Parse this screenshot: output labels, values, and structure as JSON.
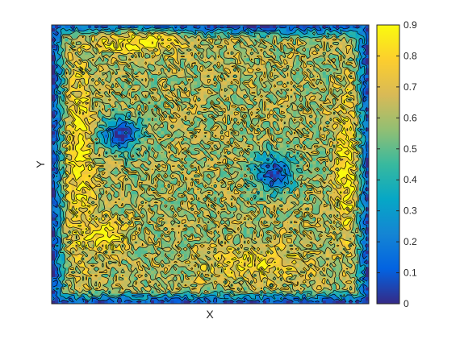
{
  "chart_data": {
    "type": "heatmap",
    "title": "",
    "xlabel": "X",
    "ylabel": "Y",
    "x_ticks": [],
    "y_ticks": [],
    "grid": false,
    "legend": "none",
    "colorbar": {
      "placement": "right",
      "range": [
        0,
        0.9
      ],
      "colormap": "parula",
      "ticks": [
        "0",
        "0.1",
        "0.2",
        "0.3",
        "0.4",
        "0.5",
        "0.6",
        "0.7",
        "0.8",
        "0.9"
      ]
    },
    "contour_lines": true,
    "contour_color": "#000000",
    "features": [
      {
        "kind": "high",
        "cx": 0.09,
        "cy": 0.47,
        "rx": 0.05,
        "ry": 0.38,
        "value": 0.9
      },
      {
        "kind": "high",
        "cx": 0.27,
        "cy": 0.06,
        "rx": 0.16,
        "ry": 0.05,
        "value": 0.9
      },
      {
        "kind": "high",
        "cx": 0.17,
        "cy": 0.75,
        "rx": 0.08,
        "ry": 0.07,
        "value": 0.9
      },
      {
        "kind": "high",
        "cx": 0.93,
        "cy": 0.5,
        "rx": 0.045,
        "ry": 0.29,
        "value": 0.9
      },
      {
        "kind": "high",
        "cx": 0.65,
        "cy": 0.85,
        "rx": 0.22,
        "ry": 0.07,
        "value": 0.8
      },
      {
        "kind": "low",
        "cx": 0.22,
        "cy": 0.39,
        "rx": 0.085,
        "ry": 0.08,
        "value": 0.05
      },
      {
        "kind": "low",
        "cx": 0.7,
        "cy": 0.53,
        "rx": 0.075,
        "ry": 0.09,
        "value": 0.05
      }
    ]
  }
}
